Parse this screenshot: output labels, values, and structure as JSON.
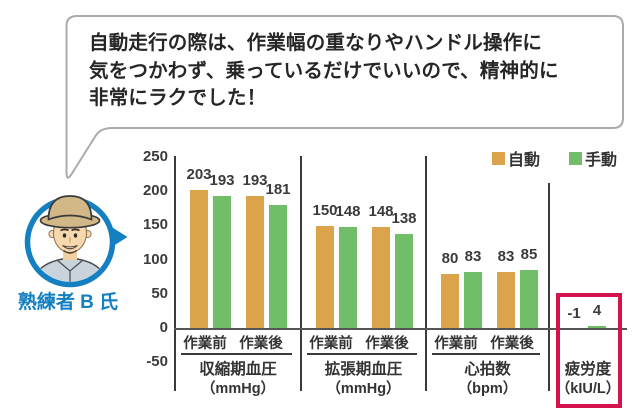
{
  "speech_bubble": {
    "lines": [
      "自動走行の際は、作業幅の重なりやハンドル操作に",
      "気をつかわず、乗っているだけでいいので、精神的に",
      "非常にラクでした！"
    ]
  },
  "avatar": {
    "label": "熟練者 B 氏",
    "ring_color": "#1480C2"
  },
  "legend": [
    {
      "label": "自動",
      "color": "#DBA44A"
    },
    {
      "label": "手動",
      "color": "#72BD68"
    }
  ],
  "chart_data": {
    "type": "bar",
    "series": [
      {
        "name": "自動",
        "color": "#DBA44A"
      },
      {
        "name": "手動",
        "color": "#72BD68"
      }
    ],
    "y_axis": {
      "ticks": [
        250,
        200,
        150,
        100,
        50,
        0,
        -50
      ],
      "min": -50,
      "max": 250
    },
    "grid": false,
    "legend_position": "top-right",
    "groups": [
      {
        "label": "収縮期血圧",
        "unit": "（mmHg）",
        "pairs": [
          {
            "x_label": "作業前",
            "values": [
              203,
              193
            ]
          },
          {
            "x_label": "作業後",
            "values": [
              193,
              181
            ]
          }
        ]
      },
      {
        "label": "拡張期血圧",
        "unit": "（mmHg）",
        "pairs": [
          {
            "x_label": "作業前",
            "values": [
              150,
              148
            ]
          },
          {
            "x_label": "作業後",
            "values": [
              148,
              138
            ]
          }
        ]
      },
      {
        "label": "心拍数",
        "unit": "（bpm）",
        "pairs": [
          {
            "x_label": "作業前",
            "values": [
              80,
              83
            ]
          },
          {
            "x_label": "作業後",
            "values": [
              83,
              85
            ]
          }
        ]
      },
      {
        "label": "疲労度",
        "unit": "（kIU/L）",
        "highlighted": true,
        "pairs": [
          {
            "x_label": "",
            "values": [
              -1,
              4
            ]
          }
        ]
      }
    ],
    "highlight_box_color": "#D4124B"
  }
}
